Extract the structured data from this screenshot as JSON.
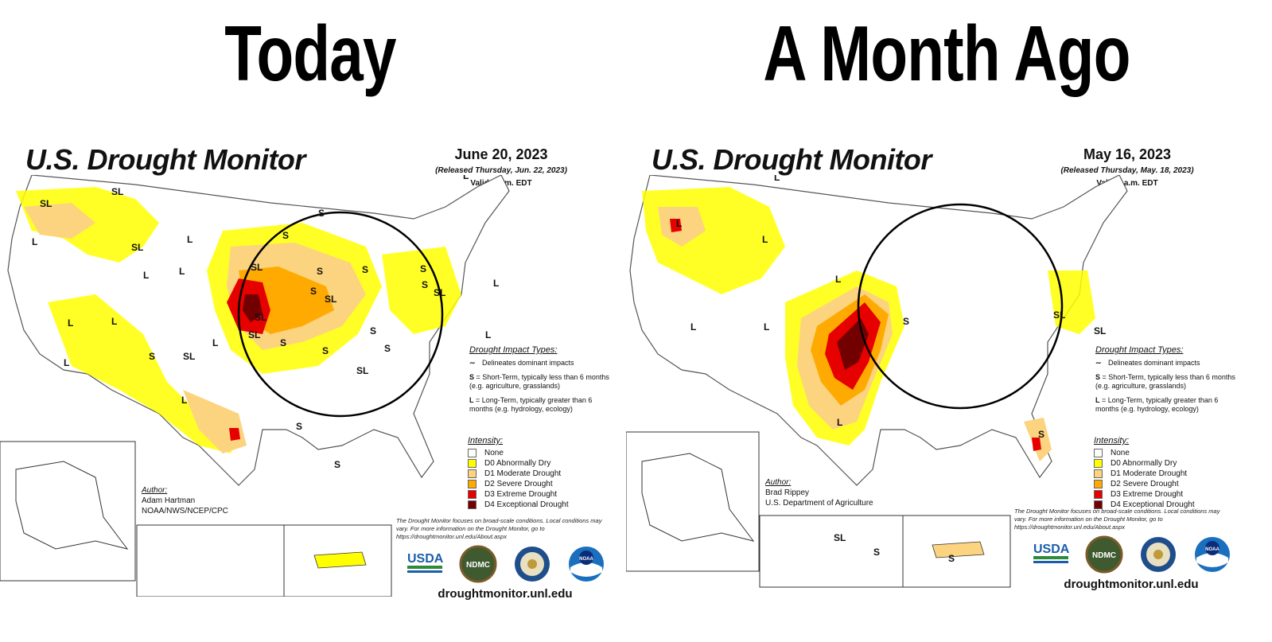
{
  "headings": {
    "left": "Today",
    "right": "A Month Ago"
  },
  "colors": {
    "none": "#ffffff",
    "d0": "#ffff00",
    "d1": "#fcd37f",
    "d2": "#ffaa00",
    "d3": "#e60000",
    "d4": "#730000",
    "outline": "#000000",
    "states": "#555555",
    "rivers": "#4a90d9"
  },
  "left_map": {
    "title": "U.S. Drought Monitor",
    "date": "June 20, 2023",
    "released": "(Released Thursday, Jun. 22, 2023)",
    "valid": "Valid 8 a.m. EDT",
    "impact_header": "Drought Impact Types:",
    "impact_outline": "Delineates dominant impacts",
    "impact_s_key": "S",
    "impact_s_text": "= Short-Term, typically less than 6 months (e.g. agriculture, grasslands)",
    "impact_l_key": "L",
    "impact_l_text": "= Long-Term, typically greater than 6 months (e.g. hydrology, ecology)",
    "intensity_header": "Intensity:",
    "legend": [
      "None",
      "D0 Abnormally Dry",
      "D1 Moderate Drought",
      "D2 Severe Drought",
      "D3 Extreme Drought",
      "D4 Exceptional Drought"
    ],
    "author_header": "Author:",
    "author_name": "Adam Hartman",
    "author_org": "NOAA/NWS/NCEP/CPC",
    "disclaimer": "The Drought Monitor focuses on broad-scale conditions. Local conditions may vary. For more information on the Drought Monitor, go to https://droughtmonitor.unl.edu/About.aspx",
    "logos": [
      "USDA",
      "NDMC",
      "",
      "NOAA"
    ],
    "url": "droughtmonitor.unl.edu",
    "impact_labels": [
      "SL",
      "SL",
      "L",
      "SL",
      "L",
      "L",
      "L",
      "SL",
      "S",
      "S",
      "S",
      "S",
      "SL",
      "S",
      "S",
      "SL",
      "L",
      "L",
      "L",
      "S",
      "SL",
      "L",
      "L",
      "S",
      "S",
      "S",
      "S",
      "SL",
      "SL",
      "L",
      "L",
      "L",
      "L",
      "L",
      "S",
      "S",
      "SL",
      "S",
      "S"
    ]
  },
  "right_map": {
    "title": "U.S. Drought Monitor",
    "date": "May 16, 2023",
    "released": "(Released Thursday, May. 18, 2023)",
    "valid": "Valid 8 a.m. EDT",
    "impact_header": "Drought Impact Types:",
    "impact_outline": "Delineates dominant impacts",
    "impact_s_key": "S",
    "impact_s_text": "= Short-Term, typically less than 6 months (e.g. agriculture, grasslands)",
    "impact_l_key": "L",
    "impact_l_text": "= Long-Term, typically greater than 6 months (e.g. hydrology, ecology)",
    "intensity_header": "Intensity:",
    "legend": [
      "None",
      "D0 Abnormally Dry",
      "D1 Moderate Drought",
      "D2 Severe Drought",
      "D3 Extreme Drought",
      "D4 Exceptional Drought"
    ],
    "author_header": "Author:",
    "author_name": "Brad Rippey",
    "author_org": "U.S. Department of Agriculture",
    "disclaimer": "The Drought Monitor focuses on broad-scale conditions. Local conditions may vary. For more information on the Drought Monitor, go to https://droughtmonitor.unl.edu/About.aspx",
    "logos": [
      "USDA",
      "NDMC",
      "",
      "NOAA"
    ],
    "url": "droughtmonitor.unl.edu",
    "impact_labels": [
      "L",
      "L",
      "L",
      "L",
      "L",
      "L",
      "L",
      "S",
      "SL",
      "S",
      "L",
      "S",
      "SL",
      "S",
      "SL"
    ]
  }
}
